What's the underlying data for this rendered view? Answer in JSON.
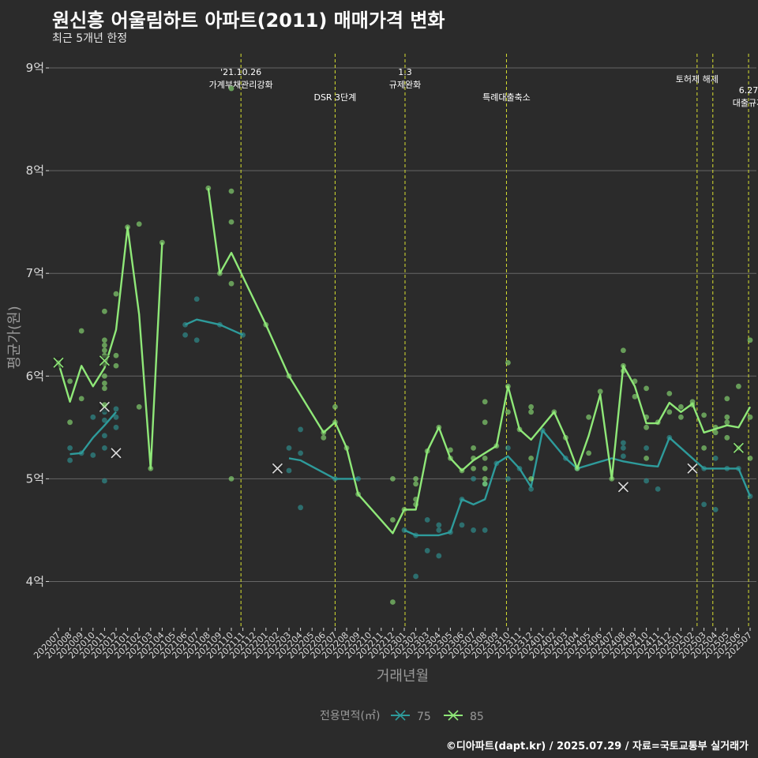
{
  "header": {
    "title": "원신흥 어울림하트 아파트(2011) 매매가격 변화",
    "subtitle": "최근 5개년 한정"
  },
  "footer": {
    "credit": "©디아파트(dapt.kr) / 2025.07.29 / 자료=국토교통부 실거래가"
  },
  "colors": {
    "background": "#2b2b2b",
    "grid": "#666666",
    "text": "#ffffff",
    "axis_text": "#d9d9d9",
    "series_75": "#2e9b9b",
    "series_85": "#8fe878",
    "event_line": "#d8e030"
  },
  "chart_data": {
    "type": "line",
    "xlabel": "거래년월",
    "ylabel": "평균가(원)",
    "ylim": [
      3.55,
      9.2
    ],
    "y_ticks": [
      4,
      5,
      6,
      7,
      8,
      9
    ],
    "y_tick_labels": [
      "4억",
      "5억",
      "6억",
      "7억",
      "8억",
      "9억"
    ],
    "grid": true,
    "legend_position": "bottom",
    "legend_title": "전용면적(㎡)",
    "categories": [
      "202007",
      "202008",
      "202009",
      "202010",
      "202011",
      "202012",
      "202101",
      "202102",
      "202103",
      "202104",
      "202105",
      "202106",
      "202107",
      "202108",
      "202109",
      "202110",
      "202111",
      "202112",
      "202201",
      "202202",
      "202203",
      "202204",
      "202205",
      "202206",
      "202207",
      "202208",
      "202209",
      "202210",
      "202211",
      "202212",
      "202301",
      "202302",
      "202303",
      "202304",
      "202305",
      "202306",
      "202307",
      "202308",
      "202309",
      "202310",
      "202311",
      "202312",
      "202401",
      "202402",
      "202403",
      "202404",
      "202405",
      "202406",
      "202407",
      "202408",
      "202409",
      "202410",
      "202411",
      "202412",
      "202501",
      "202502",
      "202503",
      "202504",
      "202505",
      "202506",
      "202507"
    ],
    "series": [
      {
        "name": "75",
        "avg": [
          [
            "2020-08",
            5.24
          ],
          [
            "2020-09",
            5.25
          ],
          [
            "2020-10",
            5.4
          ],
          [
            "2020-11",
            5.52
          ],
          [
            "2020-12",
            5.65
          ],
          [
            "2021-06",
            6.5
          ],
          [
            "2021-07",
            6.55
          ],
          [
            "2021-09",
            6.5
          ],
          [
            "2021-11",
            6.4
          ],
          [
            "2022-03",
            5.2
          ],
          [
            "2022-04",
            5.18
          ],
          [
            "2022-07",
            5.0
          ],
          [
            "2022-08",
            5.0
          ],
          [
            "2022-09",
            5.0
          ],
          [
            "2023-01",
            4.5
          ],
          [
            "2023-02",
            4.45
          ],
          [
            "2023-04",
            4.45
          ],
          [
            "2023-05",
            4.48
          ],
          [
            "2023-06",
            4.8
          ],
          [
            "2023-07",
            4.75
          ],
          [
            "2023-08",
            4.8
          ],
          [
            "2023-09",
            5.15
          ],
          [
            "2023-10",
            5.22
          ],
          [
            "2023-11",
            5.1
          ],
          [
            "2023-12",
            4.92
          ],
          [
            "2024-01",
            5.47
          ],
          [
            "2024-03",
            5.2
          ],
          [
            "2024-04",
            5.1
          ],
          [
            "2024-07",
            5.2
          ],
          [
            "2024-08",
            5.17
          ],
          [
            "2024-10",
            5.13
          ],
          [
            "2024-11",
            5.12
          ],
          [
            "2024-12",
            5.4
          ],
          [
            "2025-03",
            5.1
          ],
          [
            "2025-06",
            5.1
          ],
          [
            "2025-07",
            4.83
          ]
        ],
        "trades": [
          [
            "2020-08",
            5.3
          ],
          [
            "2020-08",
            5.18
          ],
          [
            "2020-09",
            5.25
          ],
          [
            "2020-10",
            5.23
          ],
          [
            "2020-10",
            5.6
          ],
          [
            "2020-11",
            4.98
          ],
          [
            "2020-11",
            5.3
          ],
          [
            "2020-11",
            5.42
          ],
          [
            "2020-11",
            5.57
          ],
          [
            "2020-11",
            5.65
          ],
          [
            "2020-12",
            5.5
          ],
          [
            "2020-12",
            5.6
          ],
          [
            "2020-12",
            5.68
          ],
          [
            "2021-06",
            6.4
          ],
          [
            "2021-06",
            6.5
          ],
          [
            "2021-07",
            6.35
          ],
          [
            "2021-07",
            6.75
          ],
          [
            "2021-09",
            6.5
          ],
          [
            "2021-11",
            6.4
          ],
          [
            "2022-03",
            5.08
          ],
          [
            "2022-03",
            5.3
          ],
          [
            "2022-04",
            4.72
          ],
          [
            "2022-04",
            5.25
          ],
          [
            "2022-04",
            5.48
          ],
          [
            "2022-07",
            5.0
          ],
          [
            "2022-09",
            5.0
          ],
          [
            "2023-01",
            4.5
          ],
          [
            "2023-02",
            4.05
          ],
          [
            "2023-02",
            4.45
          ],
          [
            "2023-03",
            4.3
          ],
          [
            "2023-03",
            4.6
          ],
          [
            "2023-04",
            4.25
          ],
          [
            "2023-04",
            4.5
          ],
          [
            "2023-04",
            4.55
          ],
          [
            "2023-05",
            4.48
          ],
          [
            "2023-06",
            4.55
          ],
          [
            "2023-06",
            4.8
          ],
          [
            "2023-07",
            4.5
          ],
          [
            "2023-07",
            5.0
          ],
          [
            "2023-08",
            4.5
          ],
          [
            "2023-08",
            4.95
          ],
          [
            "2023-09",
            5.15
          ],
          [
            "2023-10",
            5.0
          ],
          [
            "2023-10",
            5.3
          ],
          [
            "2023-11",
            5.1
          ],
          [
            "2023-12",
            4.9
          ],
          [
            "2024-01",
            5.47
          ],
          [
            "2024-03",
            5.2
          ],
          [
            "2024-04",
            5.1
          ],
          [
            "2024-08",
            5.22
          ],
          [
            "2024-08",
            5.3
          ],
          [
            "2024-08",
            5.35
          ],
          [
            "2024-10",
            4.98
          ],
          [
            "2024-10",
            5.3
          ],
          [
            "2024-11",
            4.9
          ],
          [
            "2024-12",
            5.4
          ],
          [
            "2025-03",
            4.75
          ],
          [
            "2025-03",
            5.1
          ],
          [
            "2025-04",
            4.7
          ],
          [
            "2025-04",
            5.2
          ],
          [
            "2025-05",
            5.1
          ],
          [
            "2025-06",
            5.1
          ],
          [
            "2025-07",
            4.83
          ]
        ],
        "cancelled": [
          [
            "2020-11",
            5.7
          ],
          [
            "2020-12",
            5.25
          ],
          [
            "2022-02",
            5.1
          ],
          [
            "2024-08",
            4.92
          ],
          [
            "2025-02",
            5.1
          ]
        ]
      },
      {
        "name": "85",
        "avg": [
          [
            "2020-07",
            6.13
          ],
          [
            "2020-08",
            5.75
          ],
          [
            "2020-09",
            6.1
          ],
          [
            "2020-10",
            5.9
          ],
          [
            "2020-11",
            6.08
          ],
          [
            "2020-12",
            6.45
          ],
          [
            "2021-01",
            7.45
          ],
          [
            "2021-02",
            6.6
          ],
          [
            "2021-03",
            5.1
          ],
          [
            "2021-04",
            7.3
          ],
          [
            "2021-08",
            7.83
          ],
          [
            "2021-09",
            7.0
          ],
          [
            "2021-10",
            7.2
          ],
          [
            "2022-01",
            6.5
          ],
          [
            "2022-03",
            6.0
          ],
          [
            "2022-06",
            5.45
          ],
          [
            "2022-07",
            5.55
          ],
          [
            "2022-08",
            5.3
          ],
          [
            "2022-09",
            4.85
          ],
          [
            "2022-12",
            4.47
          ],
          [
            "2023-01",
            4.7
          ],
          [
            "2023-02",
            4.7
          ],
          [
            "2023-03",
            5.27
          ],
          [
            "2023-04",
            5.5
          ],
          [
            "2023-05",
            5.2
          ],
          [
            "2023-06",
            5.08
          ],
          [
            "2023-07",
            5.18
          ],
          [
            "2023-08",
            5.25
          ],
          [
            "2023-09",
            5.32
          ],
          [
            "2023-10",
            5.9
          ],
          [
            "2023-11",
            5.48
          ],
          [
            "2023-12",
            5.38
          ],
          [
            "2024-02",
            5.65
          ],
          [
            "2024-03",
            5.4
          ],
          [
            "2024-04",
            5.1
          ],
          [
            "2024-05",
            5.42
          ],
          [
            "2024-06",
            5.82
          ],
          [
            "2024-07",
            5.0
          ],
          [
            "2024-08",
            6.1
          ],
          [
            "2024-09",
            5.9
          ],
          [
            "2024-10",
            5.54
          ],
          [
            "2024-11",
            5.54
          ],
          [
            "2024-12",
            5.74
          ],
          [
            "2025-01",
            5.65
          ],
          [
            "2025-02",
            5.73
          ],
          [
            "2025-03",
            5.45
          ],
          [
            "2025-05",
            5.52
          ],
          [
            "2025-06",
            5.5
          ],
          [
            "2025-07",
            5.7
          ]
        ],
        "trades": [
          [
            "2020-07",
            6.13
          ],
          [
            "2020-08",
            5.55
          ],
          [
            "2020-08",
            5.95
          ],
          [
            "2020-09",
            5.78
          ],
          [
            "2020-09",
            6.44
          ],
          [
            "2020-11",
            5.72
          ],
          [
            "2020-11",
            5.88
          ],
          [
            "2020-11",
            5.93
          ],
          [
            "2020-11",
            6.0
          ],
          [
            "2020-11",
            6.12
          ],
          [
            "2020-11",
            6.2
          ],
          [
            "2020-11",
            6.25
          ],
          [
            "2020-11",
            6.3
          ],
          [
            "2020-11",
            6.35
          ],
          [
            "2020-11",
            6.63
          ],
          [
            "2020-12",
            6.1
          ],
          [
            "2020-12",
            6.2
          ],
          [
            "2020-12",
            6.8
          ],
          [
            "2021-01",
            7.45
          ],
          [
            "2021-02",
            5.7
          ],
          [
            "2021-02",
            7.48
          ],
          [
            "2021-03",
            5.1
          ],
          [
            "2021-04",
            7.3
          ],
          [
            "2021-08",
            7.83
          ],
          [
            "2021-09",
            7.0
          ],
          [
            "2021-10",
            5.0
          ],
          [
            "2021-10",
            6.9
          ],
          [
            "2021-10",
            7.5
          ],
          [
            "2021-10",
            7.8
          ],
          [
            "2021-10",
            8.8
          ],
          [
            "2022-01",
            6.5
          ],
          [
            "2022-03",
            6.0
          ],
          [
            "2022-06",
            5.4
          ],
          [
            "2022-06",
            5.45
          ],
          [
            "2022-07",
            5.55
          ],
          [
            "2022-07",
            5.7
          ],
          [
            "2022-08",
            5.3
          ],
          [
            "2022-09",
            4.85
          ],
          [
            "2022-12",
            3.8
          ],
          [
            "2022-12",
            4.6
          ],
          [
            "2022-12",
            5.0
          ],
          [
            "2023-01",
            4.7
          ],
          [
            "2023-02",
            4.75
          ],
          [
            "2023-02",
            4.8
          ],
          [
            "2023-02",
            4.95
          ],
          [
            "2023-02",
            5.0
          ],
          [
            "2023-03",
            5.27
          ],
          [
            "2023-04",
            5.5
          ],
          [
            "2023-05",
            5.2
          ],
          [
            "2023-05",
            5.28
          ],
          [
            "2023-06",
            5.08
          ],
          [
            "2023-07",
            5.1
          ],
          [
            "2023-07",
            5.2
          ],
          [
            "2023-07",
            5.3
          ],
          [
            "2023-08",
            4.95
          ],
          [
            "2023-08",
            5.0
          ],
          [
            "2023-08",
            5.1
          ],
          [
            "2023-08",
            5.2
          ],
          [
            "2023-08",
            5.55
          ],
          [
            "2023-08",
            5.75
          ],
          [
            "2023-09",
            5.32
          ],
          [
            "2023-10",
            5.65
          ],
          [
            "2023-10",
            5.9
          ],
          [
            "2023-10",
            6.13
          ],
          [
            "2023-11",
            5.48
          ],
          [
            "2023-12",
            5.0
          ],
          [
            "2023-12",
            5.2
          ],
          [
            "2023-12",
            5.65
          ],
          [
            "2023-12",
            5.7
          ],
          [
            "2024-02",
            5.65
          ],
          [
            "2024-03",
            5.4
          ],
          [
            "2024-04",
            5.1
          ],
          [
            "2024-05",
            5.25
          ],
          [
            "2024-05",
            5.6
          ],
          [
            "2024-06",
            5.85
          ],
          [
            "2024-07",
            5.0
          ],
          [
            "2024-08",
            6.05
          ],
          [
            "2024-08",
            6.1
          ],
          [
            "2024-08",
            6.25
          ],
          [
            "2024-09",
            5.8
          ],
          [
            "2024-09",
            5.95
          ],
          [
            "2024-10",
            5.2
          ],
          [
            "2024-10",
            5.5
          ],
          [
            "2024-10",
            5.6
          ],
          [
            "2024-10",
            5.88
          ],
          [
            "2024-11",
            5.55
          ],
          [
            "2024-12",
            5.65
          ],
          [
            "2024-12",
            5.83
          ],
          [
            "2025-01",
            5.6
          ],
          [
            "2025-01",
            5.7
          ],
          [
            "2025-02",
            5.72
          ],
          [
            "2025-02",
            5.75
          ],
          [
            "2025-03",
            5.3
          ],
          [
            "2025-03",
            5.62
          ],
          [
            "2025-04",
            5.45
          ],
          [
            "2025-04",
            5.5
          ],
          [
            "2025-05",
            5.4
          ],
          [
            "2025-05",
            5.55
          ],
          [
            "2025-05",
            5.6
          ],
          [
            "2025-05",
            5.78
          ],
          [
            "2025-06",
            5.3
          ],
          [
            "2025-06",
            5.9
          ],
          [
            "2025-07",
            5.2
          ],
          [
            "2025-07",
            5.6
          ],
          [
            "2025-07",
            6.35
          ]
        ],
        "cancelled": [
          [
            "2020-07",
            6.13
          ],
          [
            "2020-11",
            6.15
          ],
          [
            "2025-06",
            5.3
          ]
        ]
      }
    ],
    "events": [
      {
        "date": "2021-10-26",
        "label_lines": [
          "'21.10.26",
          "가계부채관리강화"
        ]
      },
      {
        "date": "2022-07-01",
        "label_lines": [
          "DSR 3단계"
        ]
      },
      {
        "date": "2023-01-03",
        "label_lines": [
          "1.3",
          "규제완화"
        ]
      },
      {
        "date": "2023-09-27",
        "label_lines": [
          "특례대출축소"
        ]
      },
      {
        "date": "2025-02-13",
        "label_lines": [
          "토허제 해제"
        ]
      },
      {
        "date": "2025-03-24",
        "label_lines": [
          ""
        ]
      },
      {
        "date": "2025-06-27",
        "label_lines": [
          "6.27",
          "대출규제"
        ]
      }
    ]
  }
}
